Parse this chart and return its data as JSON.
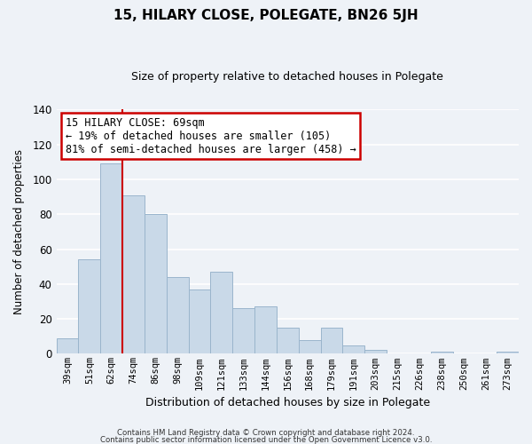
{
  "title": "15, HILARY CLOSE, POLEGATE, BN26 5JH",
  "subtitle": "Size of property relative to detached houses in Polegate",
  "xlabel": "Distribution of detached houses by size in Polegate",
  "ylabel": "Number of detached properties",
  "bar_labels": [
    "39sqm",
    "51sqm",
    "62sqm",
    "74sqm",
    "86sqm",
    "98sqm",
    "109sqm",
    "121sqm",
    "133sqm",
    "144sqm",
    "156sqm",
    "168sqm",
    "179sqm",
    "191sqm",
    "203sqm",
    "215sqm",
    "226sqm",
    "238sqm",
    "250sqm",
    "261sqm",
    "273sqm"
  ],
  "bar_values": [
    9,
    54,
    109,
    91,
    80,
    44,
    37,
    47,
    26,
    27,
    15,
    8,
    15,
    5,
    2,
    0,
    0,
    1,
    0,
    0,
    1
  ],
  "bar_color": "#c9d9e8",
  "bar_edge_color": "#9ab5cc",
  "vline_x_index": 2,
  "vline_color": "#cc0000",
  "annotation_line1": "15 HILARY CLOSE: 69sqm",
  "annotation_line2": "← 19% of detached houses are smaller (105)",
  "annotation_line3": "81% of semi-detached houses are larger (458) →",
  "annotation_box_color": "#ffffff",
  "annotation_box_edge": "#cc0000",
  "ylim": [
    0,
    140
  ],
  "yticks": [
    0,
    20,
    40,
    60,
    80,
    100,
    120,
    140
  ],
  "footer1": "Contains HM Land Registry data © Crown copyright and database right 2024.",
  "footer2": "Contains public sector information licensed under the Open Government Licence v3.0.",
  "background_color": "#eef2f7",
  "grid_color": "#ffffff"
}
